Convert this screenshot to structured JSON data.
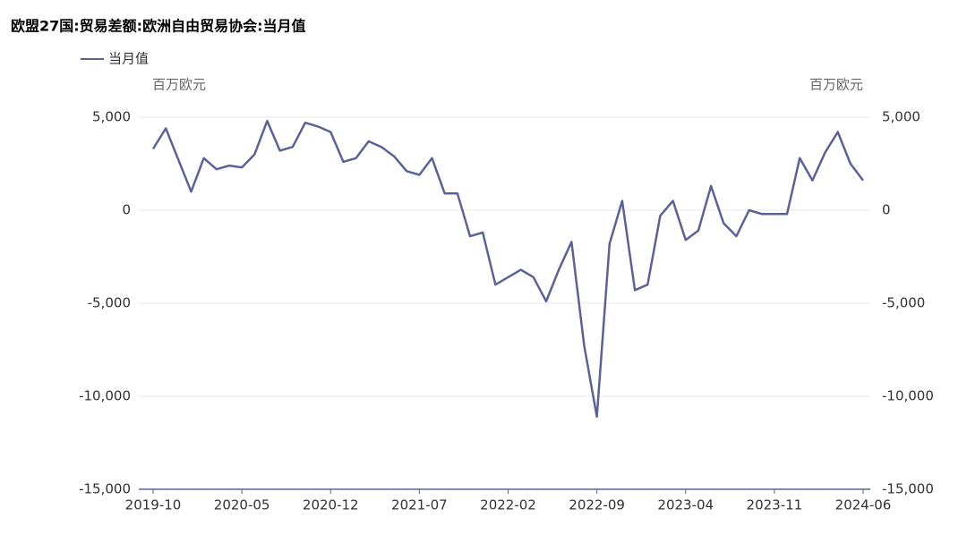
{
  "chart_data": {
    "type": "line",
    "title": "欧盟27国:贸易差额:欧洲自由贸易协会:当月值",
    "y_label": "百万欧元",
    "y2_label": "百万欧元",
    "x": [
      "2019-10",
      "2019-11",
      "2019-12",
      "2020-01",
      "2020-02",
      "2020-03",
      "2020-04",
      "2020-05",
      "2020-06",
      "2020-07",
      "2020-08",
      "2020-09",
      "2020-10",
      "2020-11",
      "2020-12",
      "2021-01",
      "2021-02",
      "2021-03",
      "2021-04",
      "2021-05",
      "2021-06",
      "2021-07",
      "2021-08",
      "2021-09",
      "2021-10",
      "2021-11",
      "2021-12",
      "2022-01",
      "2022-02",
      "2022-03",
      "2022-04",
      "2022-05",
      "2022-06",
      "2022-07",
      "2022-08",
      "2022-09",
      "2022-10",
      "2022-11",
      "2022-12",
      "2023-01",
      "2023-02",
      "2023-03",
      "2023-04",
      "2023-05",
      "2023-06",
      "2023-07",
      "2023-08",
      "2023-09",
      "2023-10",
      "2023-11",
      "2023-12",
      "2024-01",
      "2024-02",
      "2024-03",
      "2024-04",
      "2024-05",
      "2024-06"
    ],
    "xticks": [
      "2019-10",
      "2020-05",
      "2020-12",
      "2021-07",
      "2022-02",
      "2022-09",
      "2023-04",
      "2023-11",
      "2024-06"
    ],
    "series": [
      {
        "name": "当月值",
        "color": "#5b6395",
        "values": [
          3300,
          4400,
          2700,
          1000,
          2800,
          2200,
          2400,
          2300,
          3000,
          4800,
          3200,
          3400,
          4700,
          4500,
          4200,
          2600,
          2800,
          3700,
          3400,
          2900,
          2100,
          1900,
          2800,
          900,
          900,
          -1400,
          -1200,
          -4000,
          -3600,
          -3200,
          -3600,
          -4900,
          -3200,
          -1700,
          -7300,
          -11100,
          -1800,
          500,
          -4300,
          -4000,
          -300,
          500,
          -1600,
          -1100,
          1300,
          -700,
          -1400,
          0,
          -200,
          -200,
          -200,
          2800,
          1600,
          3100,
          4200,
          2500,
          1600
        ]
      }
    ],
    "ylim": [
      -15000,
      5000
    ],
    "yticks": [
      {
        "value": -15000,
        "label": "-15,000"
      },
      {
        "value": -10000,
        "label": "-10,000"
      },
      {
        "value": -5000,
        "label": "-5,000"
      },
      0,
      {
        "value": 5000,
        "label": "5,000"
      }
    ],
    "y2lim": [
      -15000,
      5000
    ],
    "y2ticks": [
      {
        "value": -15000,
        "label": "-15,000"
      },
      {
        "value": -10000,
        "label": "-10,000"
      },
      {
        "value": -5000,
        "label": "-5,000"
      },
      0,
      {
        "value": 5000,
        "label": "5,000"
      }
    ],
    "grid": true,
    "legend": "top-left"
  }
}
